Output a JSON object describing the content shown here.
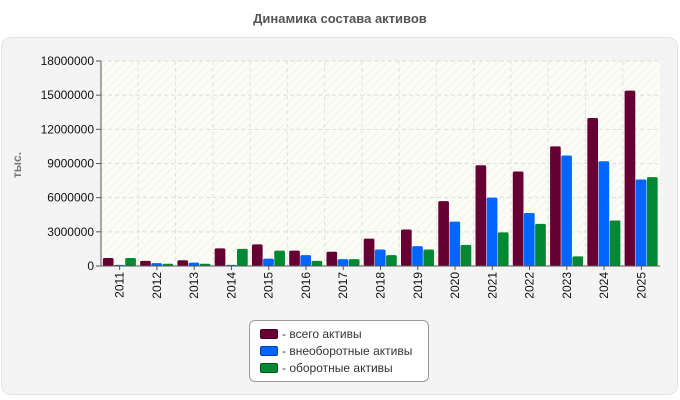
{
  "title": "Динамика состава активов",
  "chart_data": {
    "type": "bar",
    "title": "Динамика состава активов",
    "xlabel": "",
    "ylabel": "тыс.",
    "ylim": [
      0,
      18000000
    ],
    "yticks": [
      "0",
      "3000000",
      "6000000",
      "9000000",
      "12000000",
      "15000000",
      "18000000"
    ],
    "categories": [
      "2011",
      "2012",
      "2013",
      "2014",
      "2015",
      "2016",
      "2017",
      "2018",
      "2019",
      "2020",
      "2021",
      "2022",
      "2023",
      "2024",
      "2025"
    ],
    "series": [
      {
        "name": "- всего активы",
        "color": "#660033",
        "values": [
          700000,
          450000,
          500000,
          1550000,
          1900000,
          1350000,
          1250000,
          2400000,
          3200000,
          5700000,
          8850000,
          8300000,
          10500000,
          13000000,
          15400000
        ]
      },
      {
        "name": "- внеоборотные активы",
        "color": "#0066ff",
        "values": [
          100000,
          250000,
          300000,
          100000,
          650000,
          950000,
          600000,
          1450000,
          1750000,
          3900000,
          6000000,
          4650000,
          9700000,
          9200000,
          7600000
        ]
      },
      {
        "name": "- оборотные активы",
        "color": "#008833",
        "values": [
          700000,
          200000,
          200000,
          1500000,
          1350000,
          450000,
          600000,
          950000,
          1450000,
          1850000,
          2950000,
          3700000,
          850000,
          4000000,
          7800000
        ]
      }
    ],
    "grid": true,
    "legend_position": "bottom"
  }
}
